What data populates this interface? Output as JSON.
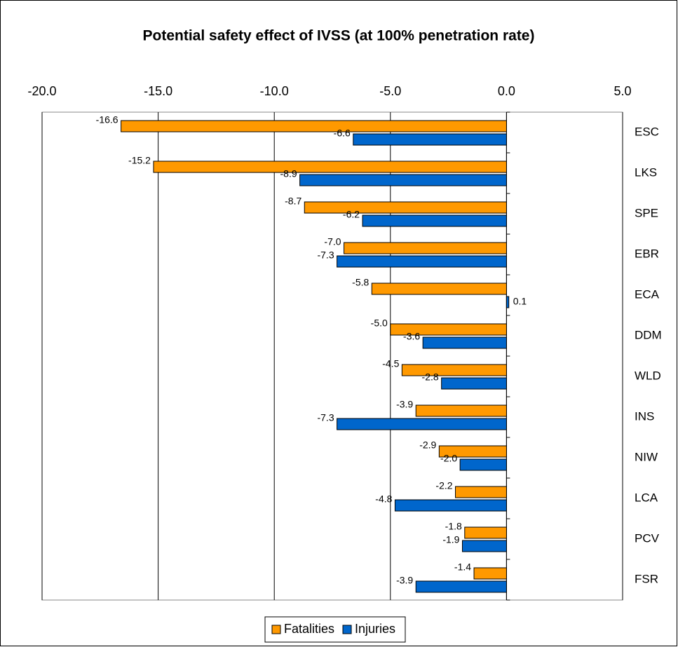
{
  "chart_data": {
    "type": "hbar",
    "title": "Potential safety effect of IVSS (at 100% penetration rate)",
    "categories": [
      "ESC",
      "LKS",
      "SPE",
      "EBR",
      "ECA",
      "DDM",
      "WLD",
      "INS",
      "NIW",
      "LCA",
      "PCV",
      "FSR"
    ],
    "series": [
      {
        "name": "Fatalities",
        "color": "#ff9900",
        "values": [
          -16.6,
          -15.2,
          -8.7,
          -7.0,
          -5.8,
          -5.0,
          -4.5,
          -3.9,
          -2.9,
          -2.2,
          -1.8,
          -1.4
        ],
        "value_labels": [
          "-16.6",
          "-15.2",
          "-8.7",
          "-7.0",
          "-5.8",
          "-5.0",
          "-4.5",
          "-3.9",
          "-2.9",
          "-2.2",
          "-1.8",
          "-1.4"
        ]
      },
      {
        "name": "Injuries",
        "color": "#0066cc",
        "values": [
          -6.6,
          -8.9,
          -6.2,
          -7.3,
          0.1,
          -3.6,
          -2.8,
          -7.3,
          -2.0,
          -4.8,
          -1.9,
          -3.9
        ],
        "value_labels": [
          "-6.6",
          "-8.9",
          "-6.2",
          "-7.3",
          "0.1",
          "-3.6",
          "-2.8",
          "-7.3",
          "-2.0",
          "-4.8",
          "-1.9",
          "-3.9"
        ]
      }
    ],
    "xlim": [
      -20,
      5
    ],
    "xticks": [
      {
        "value": -20,
        "label": "-20.0"
      },
      {
        "value": -15,
        "label": "-15.0"
      },
      {
        "value": -10,
        "label": "-10.0"
      },
      {
        "value": -5,
        "label": "-5.0"
      },
      {
        "value": 0,
        "label": "0.0"
      },
      {
        "value": 5,
        "label": "5.0"
      }
    ],
    "grid": true,
    "legend": "bottom"
  }
}
